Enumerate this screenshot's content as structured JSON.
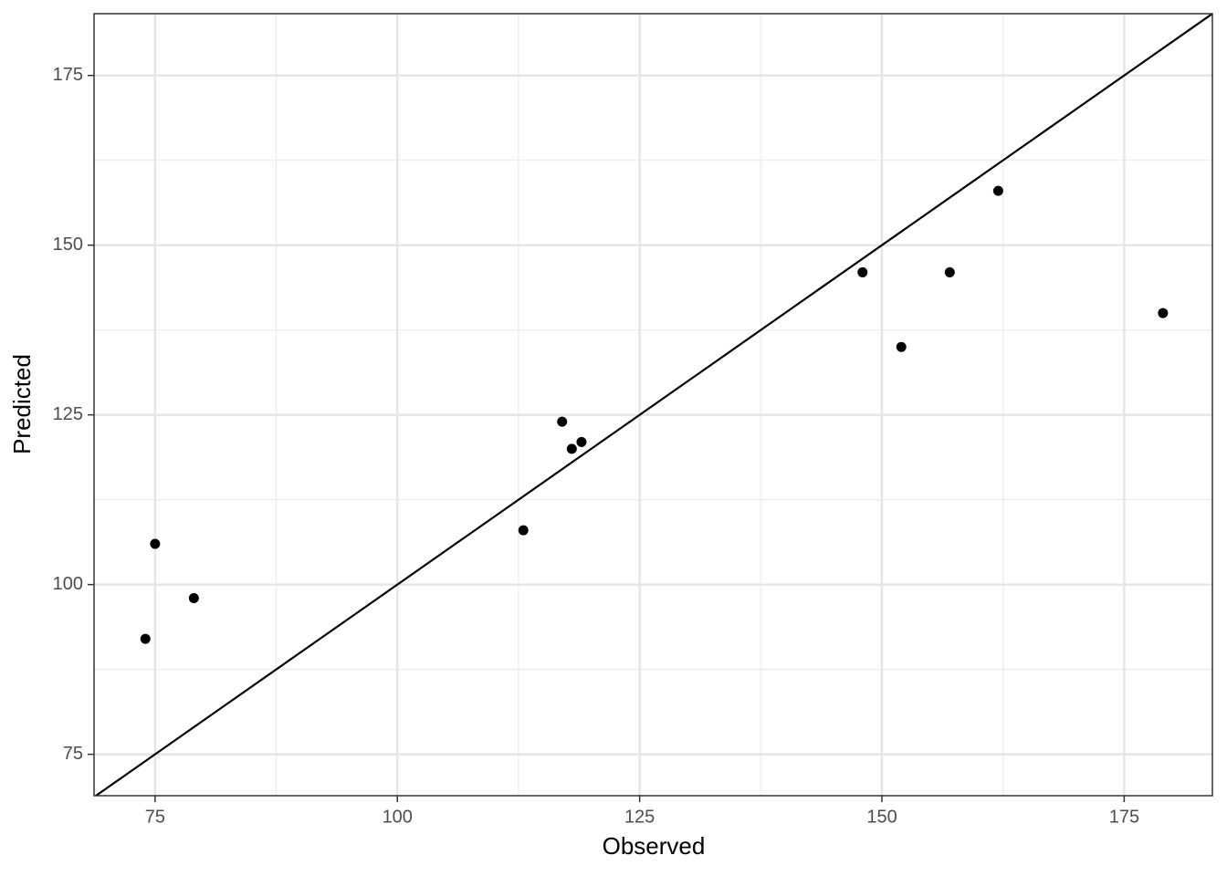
{
  "chart_data": {
    "type": "scatter",
    "x_label": "Observed",
    "y_label": "Predicted",
    "x": [
      74,
      75,
      79,
      113,
      117,
      118,
      119,
      148,
      152,
      157,
      162,
      179
    ],
    "values": [
      92,
      106,
      98,
      108,
      124,
      120,
      121,
      146,
      135,
      146,
      158,
      140
    ],
    "color": "#000000",
    "xlim": [
      68.7,
      184.1
    ],
    "ylim": [
      68.9,
      184.1
    ],
    "xticks": [
      75,
      100,
      125,
      150,
      175
    ],
    "yticks": [
      75,
      100,
      125,
      150,
      175
    ],
    "minor_xticks": [
      87.5,
      112.5,
      137.5,
      162.5
    ],
    "minor_yticks": [
      87.5,
      112.5,
      137.5,
      162.5
    ],
    "reference_line": {
      "slope": 1,
      "intercept": 0
    },
    "grid": true
  }
}
